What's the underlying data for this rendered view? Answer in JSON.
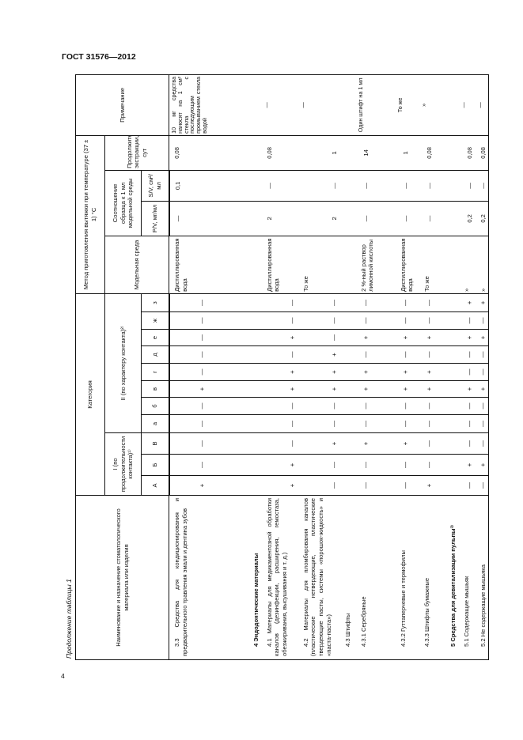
{
  "header": {
    "doc_id": "ГОСТ 31576—2012",
    "page_number": "4"
  },
  "caption": "Продолжение таблицы 1",
  "table": {
    "col_name": "Наименование и назначение стоматологического материала или изделия",
    "col_category": "Категория",
    "col_cat_I": "I (по продолжительности контакта)¹⁾",
    "col_cat_II": "II (по характеру контакта)²⁾",
    "cat_letters": [
      "А",
      "Б",
      "В",
      "а",
      "б",
      "в",
      "г",
      "д",
      "е",
      "ж",
      "з"
    ],
    "col_method": "Метод приготовления вытяжки при температуре (37 ± 1) °С",
    "col_medium": "Модельная среда",
    "col_ratio": "Соотношение образца к 1 мл модельной среды",
    "col_pv": "P/V, мг/мл",
    "col_sv": "S/V, см²/мл",
    "col_duration": "Продолжительность экстракции, сут",
    "col_note": "Примечание",
    "rows": [
      {
        "name": "3.3 Средства для кондиционирования и предварительного травления эмали и дентина зубов",
        "heading": false,
        "marks": [
          "+",
          "—",
          "—",
          "—",
          "—",
          "+",
          "—",
          "—",
          "—",
          "—",
          "—"
        ],
        "medium": "Дистиллированная вода",
        "pv": "—",
        "sv": "0,1",
        "duration": "0,08",
        "note": "10 мг средства наносят на 1 см² стекла с последующим промыванием стекла водой"
      },
      {
        "name": "4 Эндодонтические материалы",
        "heading": true,
        "marks": [
          "",
          "",
          "",
          "",
          "",
          "",
          "",
          "",
          "",
          "",
          ""
        ],
        "medium": "",
        "pv": "",
        "sv": "",
        "duration": "",
        "note": ""
      },
      {
        "name": "4.1 Материалы для медикаментозной обработки каналов (дезинфекции, расширения, гемостаза, обезжиривания, высушивания и т. д.)",
        "heading": false,
        "marks": [
          "+",
          "+",
          "—",
          "—",
          "—",
          "+",
          "+",
          "—",
          "+",
          "—",
          "—"
        ],
        "medium": "Дистиллированная вода",
        "pv": "2",
        "sv": "—",
        "duration": "0,08",
        "note": "—"
      },
      {
        "name": "4.2 Материалы для пломбирования каналов (пластические нетвердеющие, пластические твердеющие пасты, системы «порошок-жидкость» и «паста-паста»)",
        "heading": false,
        "marks": [
          "—",
          "—",
          "+",
          "—",
          "—",
          "+",
          "+",
          "+",
          "—",
          "—",
          "—"
        ],
        "medium": "То же",
        "pv": "2",
        "sv": "—",
        "duration": "1",
        "note": "—"
      },
      {
        "name": "4.3 Штифты",
        "heading": false,
        "marks": [
          "",
          "",
          "",
          "",
          "",
          "",
          "",
          "",
          "",
          "",
          ""
        ],
        "medium": "",
        "pv": "",
        "sv": "",
        "duration": "",
        "note": ""
      },
      {
        "name": "4.3.1 Серебряные",
        "heading": false,
        "marks": [
          "—",
          "—",
          "+",
          "—",
          "—",
          "+",
          "+",
          "—",
          "+",
          "—",
          "—"
        ],
        "medium": "2 %-ный раствор лимонной кислоты",
        "pv": "—",
        "sv": "—",
        "duration": "14",
        "note": "Один штифт на 1 мл"
      },
      {
        "name": "4.3.2 Гуттаперчевые и термофилы",
        "heading": false,
        "marks": [
          "—",
          "—",
          "+",
          "—",
          "—",
          "+",
          "+",
          "—",
          "+",
          "—",
          "—"
        ],
        "medium": "Дистиллированная вода",
        "pv": "—",
        "sv": "—",
        "duration": "1",
        "note": "То же"
      },
      {
        "name": "4.3.3 Штифты бумажные",
        "heading": false,
        "marks": [
          "+",
          "—",
          "—",
          "—",
          "—",
          "+",
          "+",
          "—",
          "+",
          "—",
          "—"
        ],
        "medium": "То же",
        "pv": "—",
        "sv": "—",
        "duration": "0,08",
        "note": "»"
      },
      {
        "name": "5 Средства для девитализации пульпы³⁾",
        "heading": true,
        "marks": [
          "",
          "",
          "",
          "",
          "",
          "",
          "",
          "",
          "",
          "",
          ""
        ],
        "medium": "",
        "pv": "",
        "sv": "",
        "duration": "",
        "note": ""
      },
      {
        "name": "5.1 Содержащие мышьяк",
        "heading": false,
        "marks": [
          "—",
          "+",
          "—",
          "—",
          "—",
          "+",
          "—",
          "—",
          "+",
          "—",
          "+"
        ],
        "medium": "»",
        "pv": "0,2",
        "sv": "—",
        "duration": "0,08",
        "note": "—"
      },
      {
        "name": "5.2 Не содержащие мышьяка",
        "heading": false,
        "marks": [
          "—",
          "+",
          "—",
          "—",
          "—",
          "+",
          "—",
          "—",
          "+",
          "—",
          "+"
        ],
        "medium": "»",
        "pv": "0,2",
        "sv": "—",
        "duration": "0,08",
        "note": "—"
      }
    ]
  }
}
